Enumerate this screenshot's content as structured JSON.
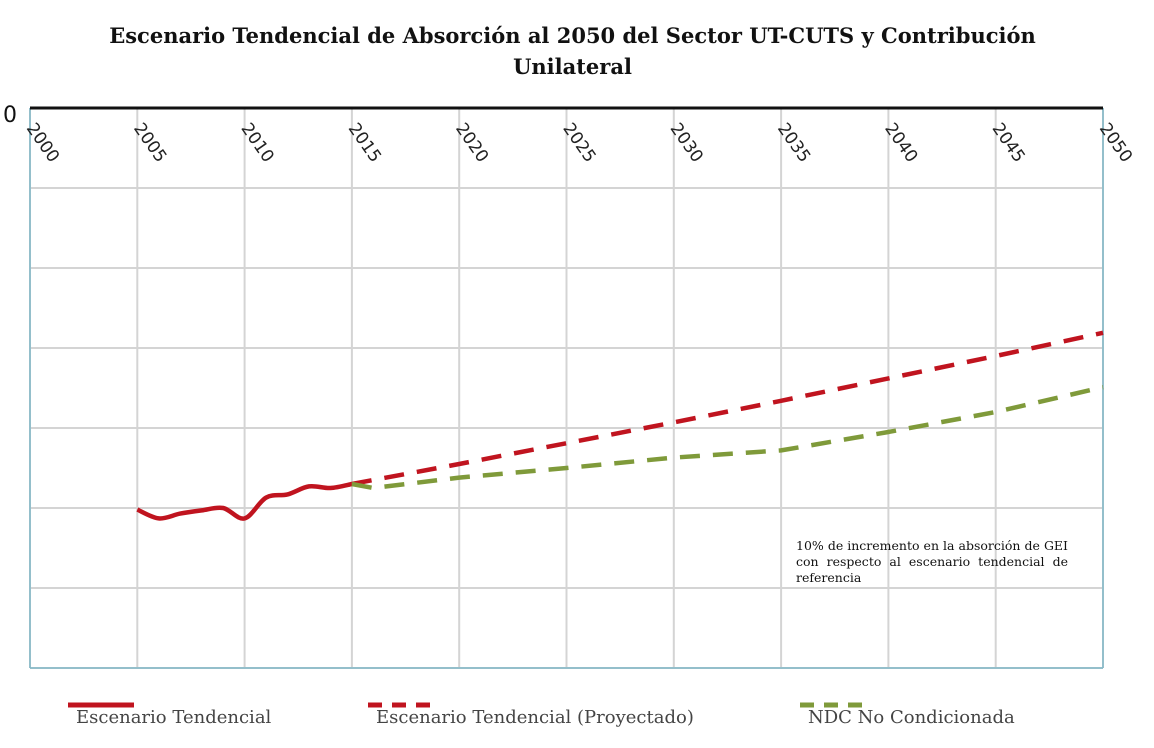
{
  "chart_data": {
    "type": "line",
    "title_line1": "Escenario Tendencial de Absorción al 2050 del Sector UT-CUTS y Contribución",
    "title_line2": "Unilateral",
    "x_ticks": [
      "2000",
      "2005",
      "2010",
      "2015",
      "2020",
      "2025",
      "2030",
      "2035",
      "2040",
      "2045",
      "2050"
    ],
    "y_tick_label": "0",
    "xlim": [
      2000,
      2050
    ],
    "ylim": [
      -70,
      0
    ],
    "grid": true,
    "legend_position": "bottom",
    "annotation": "10% de incremento en la absorción de GEI con respecto al escenario tendencial de referencia",
    "colors": {
      "tendencial": "#c0141f",
      "proyectado": "#c0141f",
      "ndc": "#7f9a3a",
      "grid": "#d4d4d4",
      "frame": "#7fb8c8"
    },
    "series": [
      {
        "name": "Escenario Tendencial",
        "style": "solid",
        "x": [
          2005,
          2006,
          2007,
          2008,
          2009,
          2010,
          2011,
          2012,
          2013,
          2014,
          2015
        ],
        "y": [
          -50.2,
          -51.3,
          -50.7,
          -50.3,
          -50.0,
          -51.3,
          -48.7,
          -48.3,
          -47.3,
          -47.5,
          -47.0
        ]
      },
      {
        "name": "Escenario Tendencial (Proyectado)",
        "style": "dashed",
        "x": [
          2015,
          2020,
          2025,
          2030,
          2035,
          2040,
          2045,
          2050
        ],
        "y": [
          -47.0,
          -44.5,
          -41.9,
          -39.3,
          -36.6,
          -33.8,
          -31.0,
          -28.1
        ]
      },
      {
        "name": "NDC No Condicionada",
        "style": "dashed",
        "x": [
          2015,
          2016,
          2020,
          2025,
          2030,
          2035,
          2040,
          2045,
          2050
        ],
        "y": [
          -47.0,
          -47.5,
          -46.2,
          -45.0,
          -43.7,
          -42.8,
          -40.5,
          -38.0,
          -34.9
        ]
      }
    ]
  }
}
